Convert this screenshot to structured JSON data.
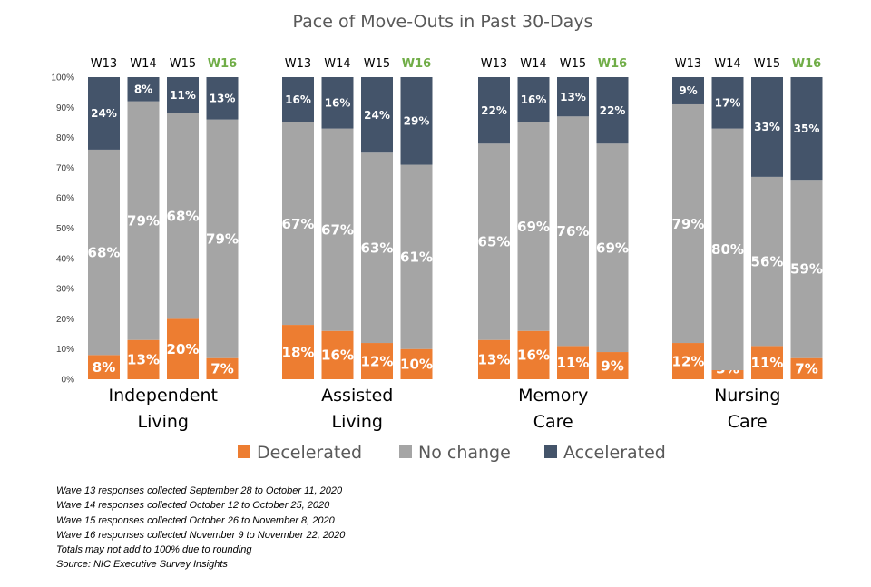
{
  "chart_data": {
    "type": "bar",
    "stacked": true,
    "title": "Pace of Move-Outs in Past 30-Days",
    "xlabel": "",
    "ylabel": "",
    "ylim": [
      0,
      100
    ],
    "y_ticks": [
      "0%",
      "10%",
      "20%",
      "30%",
      "40%",
      "50%",
      "60%",
      "70%",
      "80%",
      "90%",
      "100%"
    ],
    "waves": [
      "W13",
      "W14",
      "W15",
      "W16"
    ],
    "highlight_wave": "W16",
    "groups": [
      {
        "label": "Independent Living",
        "label_lines": [
          "Independent",
          "Living"
        ],
        "values": {
          "Decelerated": [
            8,
            13,
            20,
            7
          ],
          "No change": [
            68,
            79,
            68,
            79
          ],
          "Accelerated": [
            24,
            8,
            11,
            13
          ]
        }
      },
      {
        "label": "Assisted Living",
        "label_lines": [
          "Assisted",
          "Living"
        ],
        "values": {
          "Decelerated": [
            18,
            16,
            12,
            10
          ],
          "No change": [
            67,
            67,
            63,
            61
          ],
          "Accelerated": [
            16,
            16,
            24,
            29
          ]
        }
      },
      {
        "label": "Memory Care",
        "label_lines": [
          "Memory",
          "Care"
        ],
        "values": {
          "Decelerated": [
            13,
            16,
            11,
            9
          ],
          "No change": [
            65,
            69,
            76,
            69
          ],
          "Accelerated": [
            22,
            16,
            13,
            22
          ]
        }
      },
      {
        "label": "Nursing Care",
        "label_lines": [
          "Nursing",
          "Care"
        ],
        "values": {
          "Decelerated": [
            12,
            3,
            11,
            7
          ],
          "No change": [
            79,
            80,
            56,
            59
          ],
          "Accelerated": [
            9,
            17,
            33,
            35
          ]
        }
      }
    ],
    "series": [
      {
        "name": "Decelerated",
        "color": "#ed7d31"
      },
      {
        "name": "No change",
        "color": "#a5a5a5"
      },
      {
        "name": "Accelerated",
        "color": "#44546a"
      }
    ],
    "legend_position": "bottom",
    "grid": false,
    "wave_label_color": "#000000",
    "highlight_color": "#70ad47"
  },
  "notes": [
    "Wave 13 responses collected  September 28 to October 11, 2020",
    "Wave 14 responses collected  October 12 to October 25, 2020",
    "Wave 15 responses collected  October 26 to November 8, 2020",
    "Wave 16 responses collected  November 9 to November 22, 2020",
    "Totals may not add to 100% due to rounding",
    "Source: NIC Executive Survey Insights"
  ]
}
